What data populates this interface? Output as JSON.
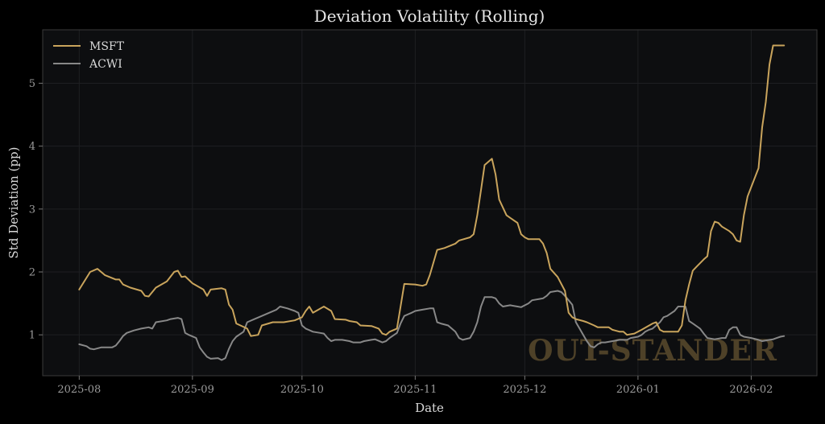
{
  "chart_data": {
    "type": "line",
    "title": "Deviation Volatility (Rolling)",
    "xlabel": "Date",
    "ylabel": "Std Deviation (pp)",
    "watermark": "OUT-STANDER",
    "x_start": "2025-08-01",
    "x_end": "2026-02-09",
    "xlim": [
      -10,
      202
    ],
    "ylim": [
      0.35,
      5.85
    ],
    "x_ticks": [
      {
        "day": 0,
        "label": "2025-08"
      },
      {
        "day": 31,
        "label": "2025-09"
      },
      {
        "day": 61,
        "label": "2025-10"
      },
      {
        "day": 92,
        "label": "2025-11"
      },
      {
        "day": 122,
        "label": "2025-12"
      },
      {
        "day": 153,
        "label": "2026-01"
      },
      {
        "day": 184,
        "label": "2026-02"
      }
    ],
    "y_ticks": [
      1,
      2,
      3,
      4,
      5
    ],
    "grid": true,
    "legend_position": "top-left",
    "series": [
      {
        "name": "MSFT",
        "color": "#c9a45c",
        "points": [
          [
            0,
            1.72
          ],
          [
            3,
            2.0
          ],
          [
            5,
            2.05
          ],
          [
            7,
            1.95
          ],
          [
            10,
            1.88
          ],
          [
            11,
            1.88
          ],
          [
            12,
            1.8
          ],
          [
            14,
            1.75
          ],
          [
            17,
            1.7
          ],
          [
            18,
            1.62
          ],
          [
            19,
            1.61
          ],
          [
            21,
            1.75
          ],
          [
            24,
            1.85
          ],
          [
            26,
            2.0
          ],
          [
            27,
            2.02
          ],
          [
            28,
            1.92
          ],
          [
            29,
            1.93
          ],
          [
            31,
            1.82
          ],
          [
            34,
            1.72
          ],
          [
            35,
            1.62
          ],
          [
            36,
            1.72
          ],
          [
            39,
            1.74
          ],
          [
            40,
            1.72
          ],
          [
            41,
            1.48
          ],
          [
            42,
            1.4
          ],
          [
            43,
            1.18
          ],
          [
            46,
            1.1
          ],
          [
            47,
            0.98
          ],
          [
            49,
            1.0
          ],
          [
            50,
            1.15
          ],
          [
            53,
            1.2
          ],
          [
            56,
            1.2
          ],
          [
            59,
            1.23
          ],
          [
            61,
            1.28
          ],
          [
            62,
            1.38
          ],
          [
            63,
            1.45
          ],
          [
            64,
            1.35
          ],
          [
            67,
            1.45
          ],
          [
            69,
            1.38
          ],
          [
            70,
            1.25
          ],
          [
            73,
            1.24
          ],
          [
            74,
            1.22
          ],
          [
            76,
            1.2
          ],
          [
            77,
            1.15
          ],
          [
            80,
            1.14
          ],
          [
            82,
            1.1
          ],
          [
            83,
            1.02
          ],
          [
            84,
            1.0
          ],
          [
            85,
            1.05
          ],
          [
            87,
            1.1
          ],
          [
            88,
            1.45
          ],
          [
            89,
            1.81
          ],
          [
            92,
            1.8
          ],
          [
            94,
            1.78
          ],
          [
            95,
            1.8
          ],
          [
            96,
            1.95
          ],
          [
            98,
            2.35
          ],
          [
            100,
            2.38
          ],
          [
            103,
            2.45
          ],
          [
            104,
            2.5
          ],
          [
            107,
            2.55
          ],
          [
            108,
            2.6
          ],
          [
            109,
            2.9
          ],
          [
            110,
            3.3
          ],
          [
            111,
            3.7
          ],
          [
            113,
            3.8
          ],
          [
            114,
            3.55
          ],
          [
            115,
            3.15
          ],
          [
            117,
            2.9
          ],
          [
            119,
            2.82
          ],
          [
            120,
            2.78
          ],
          [
            121,
            2.6
          ],
          [
            122,
            2.55
          ],
          [
            123,
            2.52
          ],
          [
            126,
            2.52
          ],
          [
            127,
            2.45
          ],
          [
            128,
            2.3
          ],
          [
            129,
            2.05
          ],
          [
            131,
            1.92
          ],
          [
            133,
            1.7
          ],
          [
            134,
            1.35
          ],
          [
            135,
            1.28
          ],
          [
            136,
            1.25
          ],
          [
            138,
            1.22
          ],
          [
            139,
            1.2
          ],
          [
            141,
            1.15
          ],
          [
            142,
            1.12
          ],
          [
            145,
            1.12
          ],
          [
            146,
            1.08
          ],
          [
            148,
            1.05
          ],
          [
            149,
            1.05
          ],
          [
            150,
            1.0
          ],
          [
            152,
            1.02
          ],
          [
            154,
            1.08
          ],
          [
            157,
            1.18
          ],
          [
            158,
            1.2
          ],
          [
            159,
            1.08
          ],
          [
            160,
            1.05
          ],
          [
            164,
            1.05
          ],
          [
            165,
            1.15
          ],
          [
            166,
            1.55
          ],
          [
            167,
            1.8
          ],
          [
            168,
            2.02
          ],
          [
            169,
            2.08
          ],
          [
            171,
            2.2
          ],
          [
            172,
            2.25
          ],
          [
            173,
            2.65
          ],
          [
            174,
            2.8
          ],
          [
            175,
            2.78
          ],
          [
            176,
            2.72
          ],
          [
            178,
            2.65
          ],
          [
            179,
            2.6
          ],
          [
            180,
            2.5
          ],
          [
            181,
            2.48
          ],
          [
            182,
            2.9
          ],
          [
            183,
            3.2
          ],
          [
            184,
            3.35
          ],
          [
            186,
            3.65
          ],
          [
            187,
            4.3
          ],
          [
            188,
            4.7
          ],
          [
            189,
            5.3
          ],
          [
            190,
            5.6
          ],
          [
            192,
            5.6
          ],
          [
            193,
            5.6
          ]
        ]
      },
      {
        "name": "ACWI",
        "color": "#888888",
        "points": [
          [
            0,
            0.85
          ],
          [
            2,
            0.82
          ],
          [
            3,
            0.78
          ],
          [
            4,
            0.77
          ],
          [
            6,
            0.8
          ],
          [
            9,
            0.8
          ],
          [
            10,
            0.83
          ],
          [
            11,
            0.9
          ],
          [
            12,
            0.98
          ],
          [
            13,
            1.03
          ],
          [
            15,
            1.07
          ],
          [
            17,
            1.1
          ],
          [
            19,
            1.12
          ],
          [
            20,
            1.1
          ],
          [
            21,
            1.2
          ],
          [
            24,
            1.23
          ],
          [
            25,
            1.25
          ],
          [
            27,
            1.27
          ],
          [
            28,
            1.25
          ],
          [
            29,
            1.03
          ],
          [
            30,
            1.0
          ],
          [
            32,
            0.95
          ],
          [
            33,
            0.8
          ],
          [
            34,
            0.72
          ],
          [
            35,
            0.65
          ],
          [
            36,
            0.62
          ],
          [
            38,
            0.63
          ],
          [
            39,
            0.6
          ],
          [
            40,
            0.63
          ],
          [
            41,
            0.78
          ],
          [
            42,
            0.9
          ],
          [
            43,
            0.97
          ],
          [
            45,
            1.05
          ],
          [
            46,
            1.2
          ],
          [
            48,
            1.25
          ],
          [
            50,
            1.3
          ],
          [
            52,
            1.35
          ],
          [
            54,
            1.4
          ],
          [
            55,
            1.45
          ],
          [
            57,
            1.42
          ],
          [
            59,
            1.38
          ],
          [
            60,
            1.35
          ],
          [
            61,
            1.15
          ],
          [
            62,
            1.1
          ],
          [
            64,
            1.05
          ],
          [
            66,
            1.03
          ],
          [
            67,
            1.02
          ],
          [
            68,
            0.95
          ],
          [
            69,
            0.9
          ],
          [
            70,
            0.92
          ],
          [
            72,
            0.92
          ],
          [
            74,
            0.9
          ],
          [
            75,
            0.88
          ],
          [
            77,
            0.88
          ],
          [
            78,
            0.9
          ],
          [
            80,
            0.92
          ],
          [
            81,
            0.93
          ],
          [
            83,
            0.88
          ],
          [
            84,
            0.9
          ],
          [
            85,
            0.95
          ],
          [
            87,
            1.03
          ],
          [
            88,
            1.18
          ],
          [
            89,
            1.3
          ],
          [
            91,
            1.35
          ],
          [
            92,
            1.38
          ],
          [
            94,
            1.4
          ],
          [
            96,
            1.42
          ],
          [
            97,
            1.42
          ],
          [
            98,
            1.2
          ],
          [
            99,
            1.18
          ],
          [
            101,
            1.15
          ],
          [
            102,
            1.1
          ],
          [
            103,
            1.05
          ],
          [
            104,
            0.95
          ],
          [
            105,
            0.92
          ],
          [
            107,
            0.95
          ],
          [
            108,
            1.05
          ],
          [
            109,
            1.2
          ],
          [
            110,
            1.45
          ],
          [
            111,
            1.6
          ],
          [
            113,
            1.6
          ],
          [
            114,
            1.58
          ],
          [
            115,
            1.5
          ],
          [
            116,
            1.45
          ],
          [
            118,
            1.47
          ],
          [
            120,
            1.45
          ],
          [
            121,
            1.44
          ],
          [
            123,
            1.5
          ],
          [
            124,
            1.55
          ],
          [
            126,
            1.57
          ],
          [
            127,
            1.58
          ],
          [
            128,
            1.62
          ],
          [
            129,
            1.68
          ],
          [
            131,
            1.7
          ],
          [
            132,
            1.68
          ],
          [
            133,
            1.62
          ],
          [
            134,
            1.55
          ],
          [
            135,
            1.48
          ],
          [
            136,
            1.2
          ],
          [
            137,
            1.1
          ],
          [
            138,
            1.0
          ],
          [
            139,
            0.9
          ],
          [
            140,
            0.82
          ],
          [
            141,
            0.8
          ],
          [
            142,
            0.85
          ],
          [
            143,
            0.88
          ],
          [
            144,
            0.88
          ],
          [
            146,
            0.9
          ],
          [
            148,
            0.92
          ],
          [
            150,
            0.92
          ],
          [
            151,
            0.95
          ],
          [
            153,
            0.97
          ],
          [
            154,
            1.0
          ],
          [
            155,
            1.05
          ],
          [
            156,
            1.08
          ],
          [
            157,
            1.1
          ],
          [
            159,
            1.2
          ],
          [
            160,
            1.28
          ],
          [
            161,
            1.3
          ],
          [
            163,
            1.38
          ],
          [
            164,
            1.45
          ],
          [
            166,
            1.45
          ],
          [
            167,
            1.22
          ],
          [
            168,
            1.18
          ],
          [
            170,
            1.1
          ],
          [
            171,
            1.02
          ],
          [
            172,
            0.95
          ],
          [
            174,
            0.93
          ],
          [
            176,
            0.95
          ],
          [
            177,
            0.95
          ],
          [
            178,
            1.08
          ],
          [
            179,
            1.12
          ],
          [
            180,
            1.12
          ],
          [
            181,
            1.0
          ],
          [
            182,
            0.97
          ],
          [
            184,
            0.95
          ],
          [
            186,
            0.92
          ],
          [
            187,
            0.9
          ],
          [
            189,
            0.92
          ],
          [
            190,
            0.93
          ],
          [
            191,
            0.95
          ],
          [
            192,
            0.97
          ],
          [
            193,
            0.98
          ]
        ]
      }
    ]
  }
}
